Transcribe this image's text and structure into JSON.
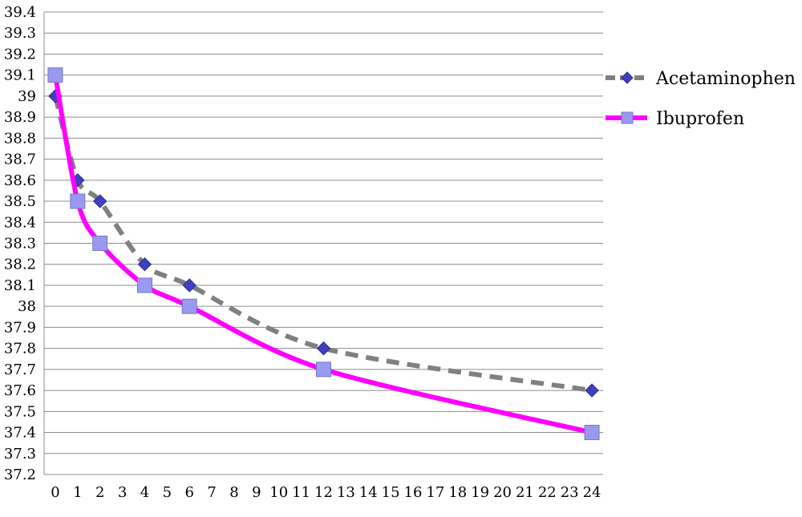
{
  "chart_data": {
    "type": "line",
    "title": "",
    "xlabel": "",
    "ylabel": "",
    "x_ticks": [
      "0",
      "1",
      "2",
      "3",
      "4",
      "5",
      "6",
      "7",
      "8",
      "9",
      "10",
      "11",
      "12",
      "13",
      "14",
      "15",
      "16",
      "17",
      "18",
      "19",
      "20",
      "21",
      "22",
      "23",
      "24"
    ],
    "ylim": [
      37.2,
      39.4
    ],
    "y_ticks": [
      "37.2",
      "37.3",
      "37.4",
      "37.5",
      "37.6",
      "37.7",
      "37.8",
      "37.9",
      "38",
      "38.1",
      "38.2",
      "38.3",
      "38.4",
      "38.5",
      "38.6",
      "38.7",
      "38.8",
      "38.9",
      "39",
      "39.1",
      "39.2",
      "39.3",
      "39.4"
    ],
    "grid": "horizontal",
    "legend_position": "right",
    "series": [
      {
        "name": "Acetaminophen",
        "color": "#808080",
        "marker_color": "#4040c0",
        "marker": "diamond",
        "line_style": "dashed",
        "points": [
          {
            "x": 0,
            "y": 39.0
          },
          {
            "x": 1,
            "y": 38.6
          },
          {
            "x": 2,
            "y": 38.5
          },
          {
            "x": 4,
            "y": 38.2
          },
          {
            "x": 6,
            "y": 38.1
          },
          {
            "x": 12,
            "y": 37.8
          },
          {
            "x": 24,
            "y": 37.6
          }
        ]
      },
      {
        "name": "Ibuprofen",
        "color": "#ff00ff",
        "marker_color": "#9999ee",
        "marker": "square",
        "line_style": "solid",
        "points": [
          {
            "x": 0,
            "y": 39.1
          },
          {
            "x": 1,
            "y": 38.5
          },
          {
            "x": 2,
            "y": 38.3
          },
          {
            "x": 4,
            "y": 38.1
          },
          {
            "x": 6,
            "y": 38.0
          },
          {
            "x": 12,
            "y": 37.7
          },
          {
            "x": 24,
            "y": 37.4
          }
        ]
      }
    ]
  }
}
